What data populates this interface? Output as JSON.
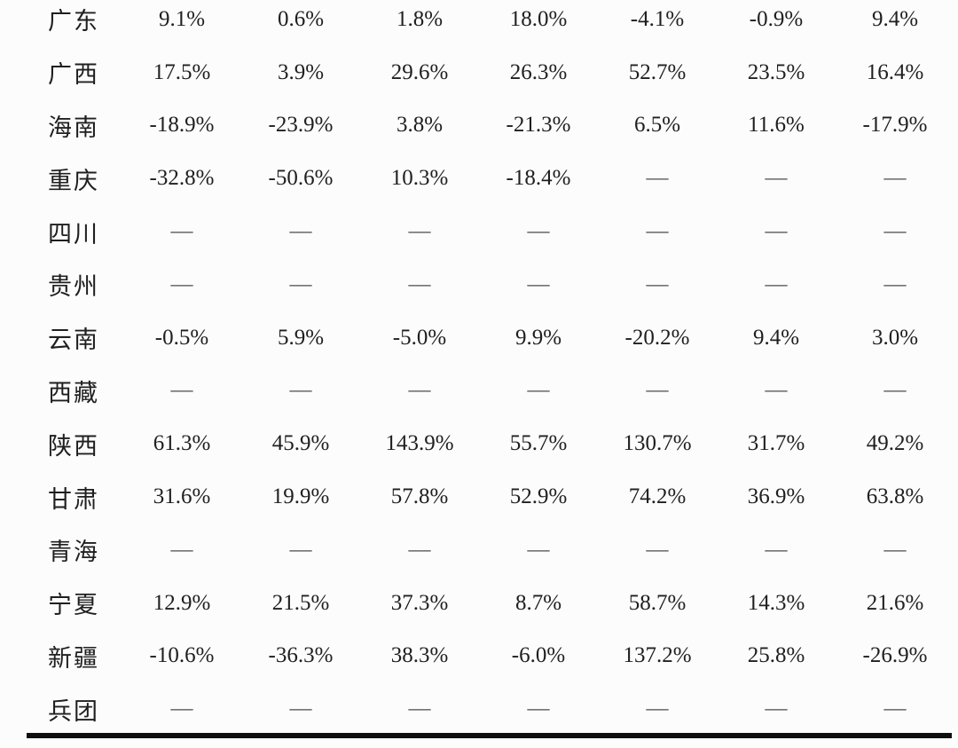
{
  "table": {
    "em_dash": "—",
    "rows": [
      {
        "province": "广东",
        "values": [
          "9.1%",
          "0.6%",
          "1.8%",
          "18.0%",
          "-4.1%",
          "-0.9%",
          "9.4%"
        ]
      },
      {
        "province": "广西",
        "values": [
          "17.5%",
          "3.9%",
          "29.6%",
          "26.3%",
          "52.7%",
          "23.5%",
          "16.4%"
        ]
      },
      {
        "province": "海南",
        "values": [
          "-18.9%",
          "-23.9%",
          "3.8%",
          "-21.3%",
          "6.5%",
          "11.6%",
          "-17.9%"
        ]
      },
      {
        "province": "重庆",
        "values": [
          "-32.8%",
          "-50.6%",
          "10.3%",
          "-18.4%",
          "—",
          "—",
          "—"
        ]
      },
      {
        "province": "四川",
        "values": [
          "—",
          "—",
          "—",
          "—",
          "—",
          "—",
          "—"
        ]
      },
      {
        "province": "贵州",
        "values": [
          "—",
          "—",
          "—",
          "—",
          "—",
          "—",
          "—"
        ]
      },
      {
        "province": "云南",
        "values": [
          "-0.5%",
          "5.9%",
          "-5.0%",
          "9.9%",
          "-20.2%",
          "9.4%",
          "3.0%"
        ]
      },
      {
        "province": "西藏",
        "values": [
          "—",
          "—",
          "—",
          "—",
          "—",
          "—",
          "—"
        ]
      },
      {
        "province": "陕西",
        "values": [
          "61.3%",
          "45.9%",
          "143.9%",
          "55.7%",
          "130.7%",
          "31.7%",
          "49.2%"
        ]
      },
      {
        "province": "甘肃",
        "values": [
          "31.6%",
          "19.9%",
          "57.8%",
          "52.9%",
          "74.2%",
          "36.9%",
          "63.8%"
        ]
      },
      {
        "province": "青海",
        "values": [
          "—",
          "—",
          "—",
          "—",
          "—",
          "—",
          "—"
        ]
      },
      {
        "province": "宁夏",
        "values": [
          "12.9%",
          "21.5%",
          "37.3%",
          "8.7%",
          "58.7%",
          "14.3%",
          "21.6%"
        ]
      },
      {
        "province": "新疆",
        "values": [
          "-10.6%",
          "-36.3%",
          "38.3%",
          "-6.0%",
          "137.2%",
          "25.8%",
          "-26.9%"
        ]
      },
      {
        "province": "兵团",
        "values": [
          "—",
          "—",
          "—",
          "—",
          "—",
          "—",
          "—"
        ]
      }
    ]
  },
  "colors": {
    "text": "#1f1f1f",
    "dash": "#4a4a4a",
    "rule": "#0f0f0f",
    "background": "#fcfcfc"
  }
}
